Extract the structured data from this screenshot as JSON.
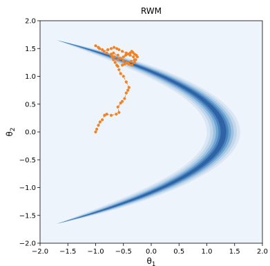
{
  "chart_data": {
    "type": "scatter",
    "title": "RWM",
    "xlabel_main": "θ",
    "xlabel_sub": "1",
    "ylabel_main": "θ",
    "ylabel_sub": "2",
    "xlim": [
      -2.0,
      2.0
    ],
    "ylim": [
      -2.0,
      2.0
    ],
    "xticks": [
      -2.0,
      -1.5,
      -1.0,
      -0.5,
      0.0,
      0.5,
      1.0,
      1.5,
      2.0
    ],
    "yticks": [
      -2.0,
      -1.5,
      -1.0,
      -0.5,
      0.0,
      0.5,
      1.0,
      1.5,
      2.0
    ],
    "xtick_labels": [
      "−2.0",
      "−1.5",
      "−1.0",
      "−0.5",
      "0.0",
      "0.5",
      "1.0",
      "1.5",
      "2.0"
    ],
    "ytick_labels": [
      "−2.0",
      "−1.5",
      "−1.0",
      "−0.5",
      "0.0",
      "0.5",
      "1.0",
      "1.5",
      "2.0"
    ],
    "background_color": "#eef4fb",
    "contour_colors": [
      "#dae6f3",
      "#c3d7ec",
      "#9ec3e0",
      "#6fa3d2",
      "#4a84bf",
      "#2f63a5"
    ],
    "chain_color": "#f5821f",
    "density": {
      "kind": "banana",
      "description": "curved density along theta1 = 1.3 - 1.1*theta2^2",
      "curve_a": 1.3,
      "curve_b": 1.1,
      "theta2_range": [
        -1.65,
        1.65
      ]
    },
    "series": [
      {
        "x": [
          -1.0,
          -0.98,
          -0.95,
          -0.92,
          -0.88,
          -0.84,
          -0.8,
          -0.72,
          -0.63,
          -0.58,
          -0.6,
          -0.55,
          -0.52,
          -0.48,
          -0.45,
          -0.42,
          -0.4,
          -0.45,
          -0.5,
          -0.55,
          -0.58,
          -0.6,
          -0.62,
          -0.65,
          -0.68,
          -0.7,
          -0.72,
          -0.68,
          -0.6,
          -0.55,
          -0.5,
          -0.45,
          -0.4,
          -0.35,
          -0.3,
          -0.28,
          -0.32,
          -0.38,
          -0.45,
          -0.52,
          -0.58,
          -0.62,
          -0.67,
          -0.72,
          -0.78,
          -0.85,
          -0.93,
          -1.0,
          -0.95,
          -0.88,
          -0.8,
          -0.72,
          -0.66,
          -0.6,
          -0.55,
          -0.5,
          -0.46,
          -0.42,
          -0.38,
          -0.35,
          -0.33,
          -0.3,
          -0.27,
          -0.25,
          -0.3,
          -0.36,
          -0.42,
          -0.48,
          -0.52
        ],
        "y": [
          0.0,
          0.05,
          0.12,
          0.18,
          0.22,
          0.3,
          0.32,
          0.3,
          0.32,
          0.35,
          0.45,
          0.52,
          0.55,
          0.6,
          0.7,
          0.75,
          0.8,
          0.9,
          1.0,
          1.05,
          1.12,
          1.18,
          1.2,
          1.25,
          1.3,
          1.35,
          1.4,
          1.42,
          1.38,
          1.32,
          1.28,
          1.25,
          1.22,
          1.2,
          1.25,
          1.3,
          1.35,
          1.38,
          1.42,
          1.45,
          1.48,
          1.5,
          1.52,
          1.5,
          1.48,
          1.45,
          1.5,
          1.55,
          1.52,
          1.48,
          1.42,
          1.38,
          1.35,
          1.3,
          1.32,
          1.35,
          1.38,
          1.4,
          1.42,
          1.45,
          1.43,
          1.4,
          1.38,
          1.35,
          1.3,
          1.27,
          1.24,
          1.22,
          1.2
        ]
      }
    ]
  }
}
